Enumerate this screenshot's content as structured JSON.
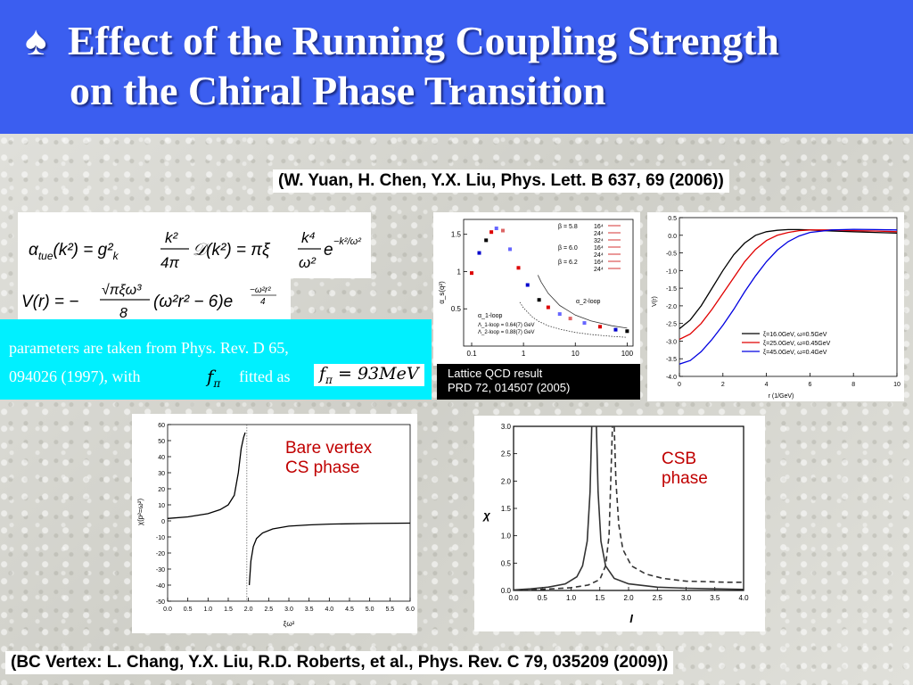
{
  "slide": {
    "title_symbol": "♠",
    "title_line1": "Effect of the Running Coupling Strength",
    "title_line2": "on the Chiral Phase Transition",
    "ref_top": "(W. Yuan, H. Chen, Y.X. Liu,   Phys. Lett. B 637, 69 (2006))",
    "ref_bottom": "(BC Vertex: L. Chang, Y.X. Liu, R.D. Roberts, et al.,  Phys. Rev. C 79, 035209 (2009))",
    "params_line1": "parameters are taken from Phys. Rev. D 65,",
    "params_line2": "094026 (1997), with",
    "params_fitted": "fitted as",
    "f_pi_symbol": "f",
    "f_pi_sub": "π",
    "f_pi_value": "= 93MeV",
    "lattice_line1": "Lattice QCD result",
    "lattice_line2": "PRD 72, 014507 (2005)",
    "anno_bare_line1": "Bare vertex",
    "anno_bare_line2": "CS phase",
    "anno_csb_line1": "CSB",
    "anno_csb_line2": "phase",
    "colors": {
      "header": "#3b5ef0",
      "cyan_box": "#00f0ff",
      "annotation": "#c00000"
    }
  },
  "chart_data": [
    {
      "type": "scatter",
      "xscale": "log",
      "xlim": [
        0.07,
        130
      ],
      "ylim": [
        0,
        1.7
      ],
      "xticks": [
        "0.1",
        "1",
        "10",
        "100"
      ],
      "yticks": [
        "0.5",
        "1",
        "1.5"
      ],
      "ylabel": "α_s(q²)",
      "legend": [
        {
          "beta": "β = 5.8",
          "lattices": [
            "16⁴",
            "24⁴",
            "32⁴"
          ]
        },
        {
          "beta": "β = 6.0",
          "lattices": [
            "16⁴",
            "24⁴"
          ]
        },
        {
          "beta": "β = 6.2",
          "lattices": [
            "16⁴",
            "24⁴"
          ]
        }
      ],
      "curve_labels": [
        "α_1-loop",
        "α_2-loop"
      ],
      "lambda_lines": [
        "Λ_1-loop = 0.64(7) GeV",
        "Λ_2-loop = 0.88(7) GeV"
      ],
      "points": [
        [
          0.1,
          0.98
        ],
        [
          0.14,
          1.25
        ],
        [
          0.19,
          1.42
        ],
        [
          0.24,
          1.53
        ],
        [
          0.3,
          1.58
        ],
        [
          0.4,
          1.55
        ],
        [
          0.55,
          1.3
        ],
        [
          0.8,
          1.05
        ],
        [
          1.2,
          0.82
        ],
        [
          2,
          0.62
        ],
        [
          3,
          0.52
        ],
        [
          5,
          0.43
        ],
        [
          8,
          0.37
        ],
        [
          15,
          0.31
        ],
        [
          30,
          0.26
        ],
        [
          60,
          0.22
        ],
        [
          100,
          0.2
        ]
      ]
    },
    {
      "type": "line",
      "xlabel": "r    (1/GeV)",
      "ylabel": "V(r)",
      "xlim": [
        0,
        10
      ],
      "ylim": [
        -4.0,
        0.5
      ],
      "xticks": [
        "0",
        "2",
        "4",
        "6",
        "8",
        "10"
      ],
      "yticks": [
        "0.5",
        "0.0",
        "-0.5",
        "-1.0",
        "-1.5",
        "-2.0",
        "-2.5",
        "-3.0",
        "-3.5",
        "-4.0"
      ],
      "series": [
        {
          "name": "ξ=16.0GeV, ω=0.5GeV",
          "color": "#000000",
          "x": [
            0,
            0.5,
            1,
            1.5,
            2,
            2.5,
            3,
            3.5,
            4,
            4.5,
            5,
            5.5,
            6,
            7,
            8,
            9,
            10
          ],
          "y": [
            -2.65,
            -2.4,
            -2.0,
            -1.5,
            -1.0,
            -0.55,
            -0.22,
            0.0,
            0.1,
            0.14,
            0.16,
            0.16,
            0.15,
            0.12,
            0.1,
            0.08,
            0.06
          ]
        },
        {
          "name": "ξ=25.0GeV, ω=0.45GeV",
          "color": "#e00000",
          "x": [
            0,
            0.5,
            1,
            1.5,
            2,
            2.5,
            3,
            3.5,
            4,
            4.5,
            5,
            5.5,
            6,
            7,
            8,
            9,
            10
          ],
          "y": [
            -2.95,
            -2.8,
            -2.5,
            -2.1,
            -1.65,
            -1.2,
            -0.75,
            -0.4,
            -0.15,
            0.0,
            0.08,
            0.13,
            0.15,
            0.15,
            0.13,
            0.12,
            0.1
          ]
        },
        {
          "name": "ξ=45.0GeV, ω=0.4GeV",
          "color": "#0000e0",
          "x": [
            0,
            0.5,
            1,
            1.5,
            2,
            2.5,
            3,
            3.5,
            4,
            4.5,
            5,
            5.5,
            6,
            7,
            8,
            9,
            10
          ],
          "y": [
            -3.65,
            -3.55,
            -3.3,
            -2.95,
            -2.55,
            -2.1,
            -1.6,
            -1.15,
            -0.75,
            -0.42,
            -0.18,
            -0.02,
            0.08,
            0.15,
            0.17,
            0.16,
            0.15
          ]
        }
      ]
    },
    {
      "type": "line",
      "xlabel": "ξω²",
      "ylabel": "χ(p²=ω²)",
      "xlim": [
        0,
        6.0
      ],
      "ylim": [
        -50,
        60
      ],
      "xticks": [
        "0.0",
        "0.5",
        "1.0",
        "1.5",
        "2.0",
        "2.5",
        "3.0",
        "3.5",
        "4.0",
        "4.5",
        "5.0",
        "5.5",
        "6.0"
      ],
      "yticks": [
        "60",
        "50",
        "40",
        "30",
        "20",
        "10",
        "0",
        "-10",
        "-20",
        "-30",
        "-40",
        "-50"
      ],
      "series": [
        {
          "name": "",
          "x": [
            0,
            0.5,
            1,
            1.3,
            1.5,
            1.65,
            1.75,
            1.82,
            1.88,
            1.92
          ],
          "y": [
            1.5,
            2.5,
            4.5,
            7,
            10,
            16,
            30,
            45,
            52,
            55
          ]
        },
        {
          "name": "",
          "x": [
            2.02,
            2.06,
            2.12,
            2.2,
            2.35,
            2.6,
            3,
            3.5,
            4,
            5,
            6
          ],
          "y": [
            -40,
            -25,
            -16,
            -11,
            -7.5,
            -5,
            -3.3,
            -2.5,
            -2,
            -1.6,
            -1.4
          ]
        }
      ],
      "vline_x": 1.96
    },
    {
      "type": "line",
      "xlabel": "I",
      "ylabel": "χ",
      "xlim": [
        0,
        4.0
      ],
      "ylim": [
        0,
        3.0
      ],
      "xticks": [
        "0.0",
        "0.5",
        "1.0",
        "1.5",
        "2.0",
        "2.5",
        "3.0",
        "3.5",
        "4.0"
      ],
      "yticks": [
        "3.0",
        "2.5",
        "2.0",
        "1.5",
        "1.0",
        "0.5",
        "0.0"
      ],
      "series": [
        {
          "name": "",
          "style": "solid",
          "x": [
            0,
            0.3,
            0.6,
            0.9,
            1.1,
            1.2,
            1.28,
            1.33,
            1.36
          ],
          "y": [
            0.01,
            0.03,
            0.06,
            0.12,
            0.25,
            0.45,
            0.9,
            1.8,
            3.0
          ]
        },
        {
          "name": "",
          "style": "solid",
          "x": [
            1.44,
            1.47,
            1.52,
            1.6,
            1.75,
            2,
            2.5,
            3,
            3.5,
            4
          ],
          "y": [
            3.0,
            1.8,
            0.9,
            0.45,
            0.22,
            0.12,
            0.06,
            0.04,
            0.03,
            0.02
          ]
        },
        {
          "name": "",
          "style": "dashed",
          "x": [
            0,
            0.5,
            1,
            1.3,
            1.5,
            1.6,
            1.66,
            1.69,
            1.72
          ],
          "y": [
            0.01,
            0.02,
            0.05,
            0.1,
            0.2,
            0.45,
            1.0,
            2.0,
            3.0
          ]
        },
        {
          "name": "",
          "style": "dashed",
          "x": [
            1.75,
            1.78,
            1.83,
            1.9,
            2.05,
            2.3,
            2.6,
            3,
            3.4,
            3.7,
            4
          ],
          "y": [
            3.0,
            2.0,
            1.2,
            0.75,
            0.45,
            0.3,
            0.22,
            0.17,
            0.16,
            0.15,
            0.15
          ]
        }
      ]
    }
  ]
}
